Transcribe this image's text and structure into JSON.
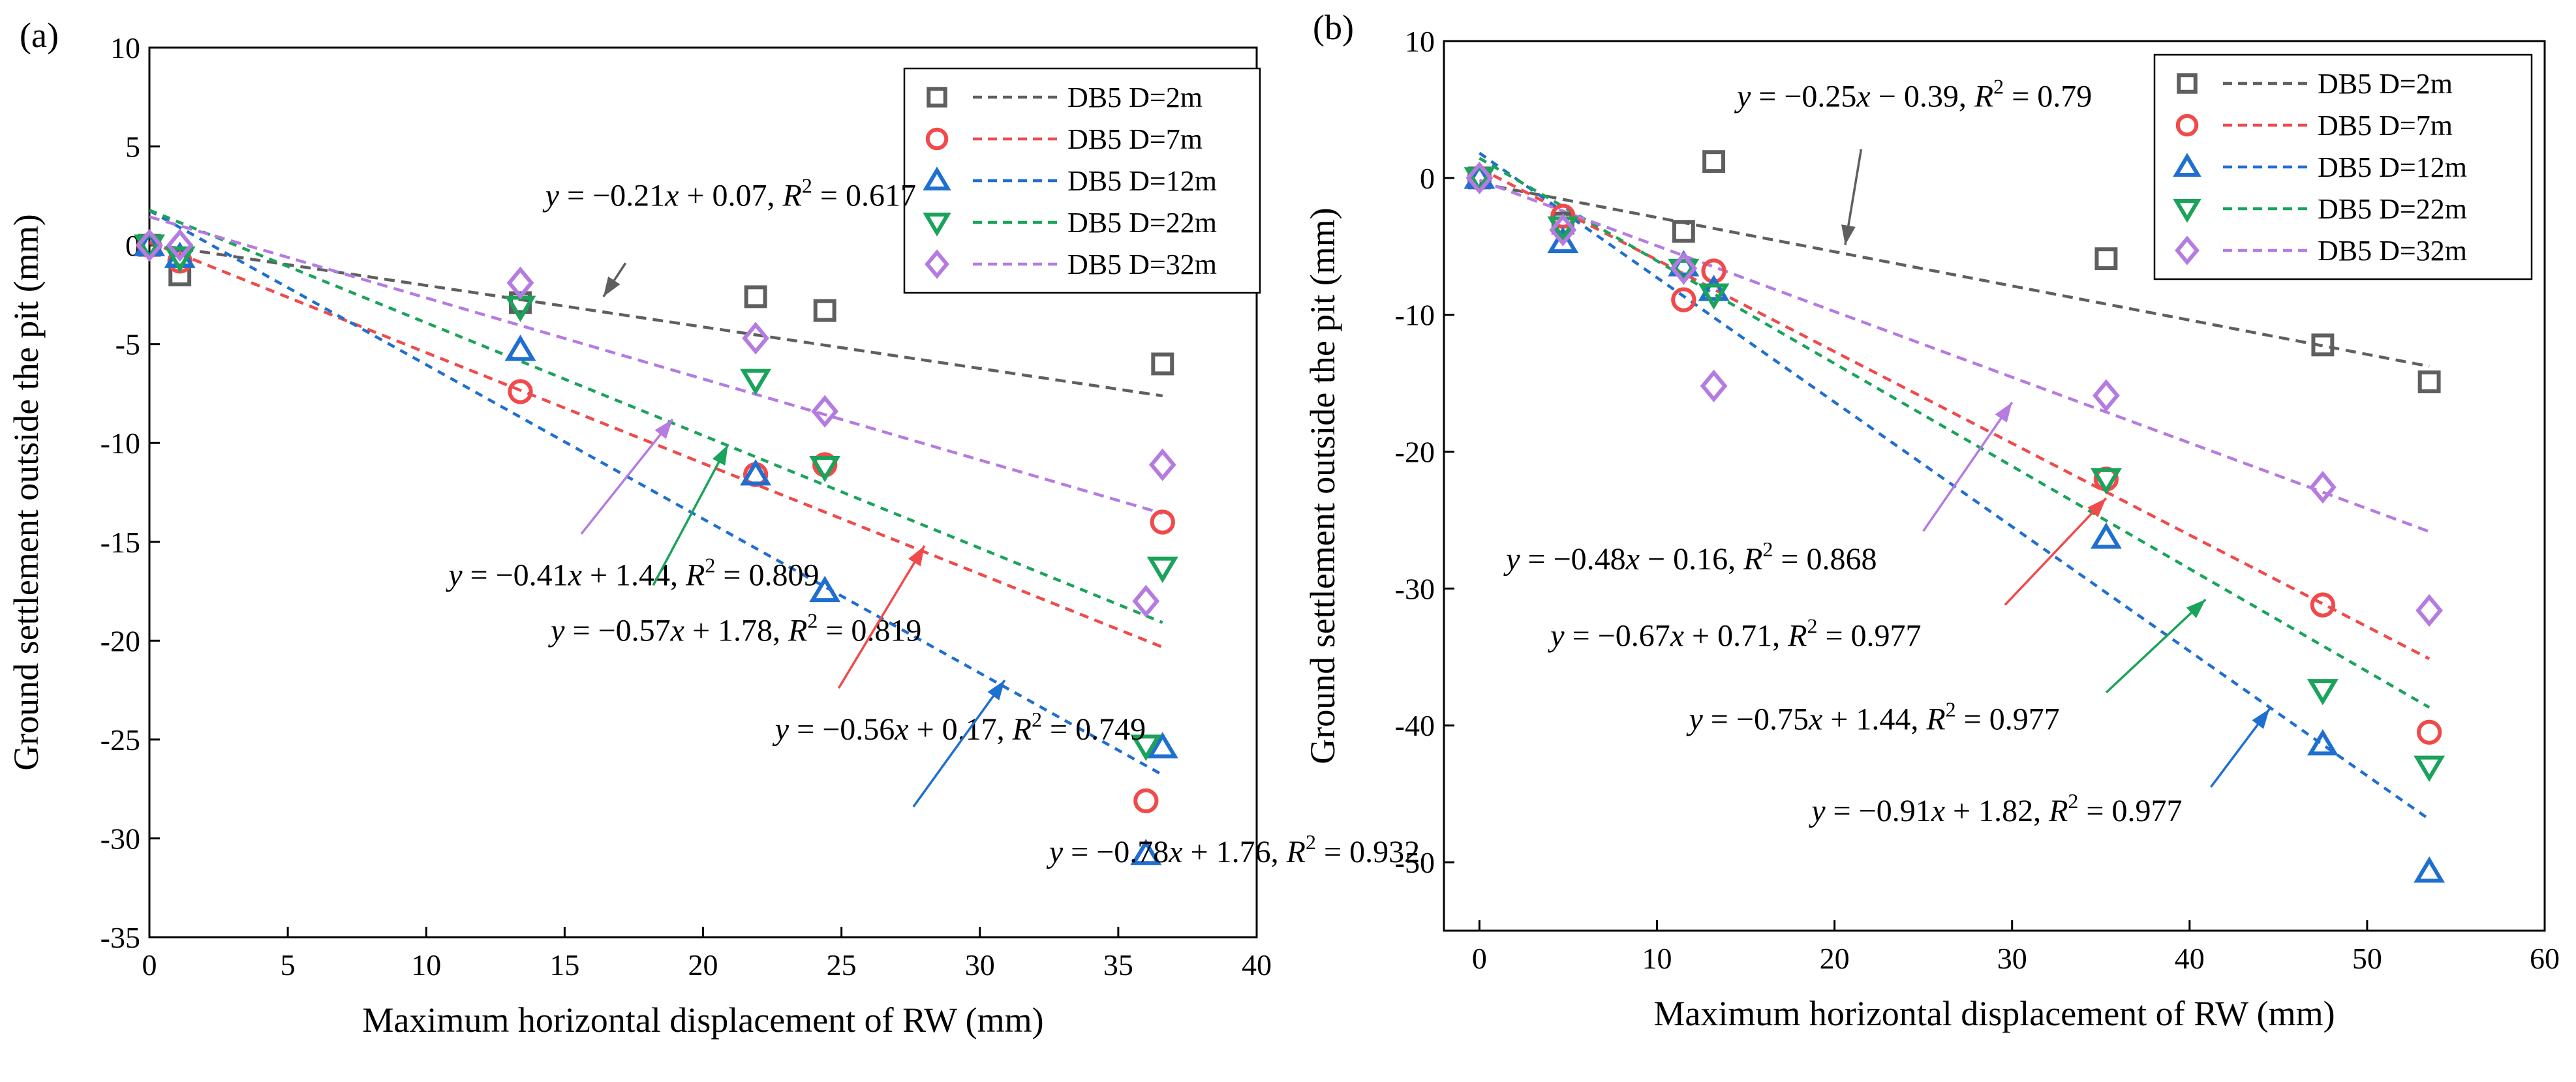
{
  "chart_data": [
    {
      "type": "scatter",
      "panel_label": "(a)",
      "xlabel": "Maximum horizontal displacement of RW (mm)",
      "ylabel": "Ground settlement outside the pit (mm)",
      "xlim": [
        0,
        40
      ],
      "ylim": [
        -35,
        10
      ],
      "xticks": [
        0,
        5,
        10,
        15,
        20,
        25,
        30,
        35,
        40
      ],
      "yticks": [
        10,
        5,
        0,
        -5,
        -10,
        -15,
        -20,
        -25,
        -30,
        -35
      ],
      "legend_position": "top-right",
      "series": [
        {
          "name": "DB5 D=2m",
          "marker": "square",
          "color": "#5f5f5f",
          "x": [
            0,
            1.1,
            13.4,
            21.9,
            24.4,
            36.6
          ],
          "y": [
            0,
            -1.5,
            -2.9,
            -2.6,
            -3.3,
            -6.0
          ],
          "fit": {
            "slope": -0.21,
            "intercept": 0.07,
            "x_range": [
              0,
              36.6
            ]
          }
        },
        {
          "name": "DB5 D=7m",
          "marker": "circle",
          "color": "#f04a4a",
          "x": [
            0,
            1.1,
            13.4,
            21.9,
            24.4,
            36.0,
            36.6
          ],
          "y": [
            0,
            -0.8,
            -7.4,
            -11.6,
            -11.1,
            -28.1,
            -14.0
          ],
          "fit": {
            "slope": -0.56,
            "intercept": 0.17,
            "x_range": [
              0,
              36.6
            ]
          }
        },
        {
          "name": "DB5 D=12m",
          "marker": "triangle-up",
          "color": "#1f6fd0",
          "x": [
            0,
            1.1,
            13.4,
            21.9,
            24.4,
            36.0,
            36.6
          ],
          "y": [
            0,
            -0.6,
            -5.3,
            -11.6,
            -17.5,
            -30.8,
            -25.4
          ],
          "fit": {
            "slope": -0.78,
            "intercept": 1.76,
            "x_range": [
              0,
              36.6
            ]
          }
        },
        {
          "name": "DB5 D=22m",
          "marker": "triangle-down",
          "color": "#1aa35a",
          "x": [
            0,
            1.1,
            13.4,
            21.9,
            24.4,
            36.0,
            36.6
          ],
          "y": [
            0,
            -0.6,
            -3.1,
            -6.8,
            -11.2,
            -25.3,
            -16.3
          ],
          "fit": {
            "slope": -0.57,
            "intercept": 1.78,
            "x_range": [
              0,
              36.6
            ]
          }
        },
        {
          "name": "DB5 D=32m",
          "marker": "diamond",
          "color": "#b57be0",
          "x": [
            0,
            1.1,
            13.4,
            21.9,
            24.4,
            36.0,
            36.6
          ],
          "y": [
            0,
            0,
            -1.9,
            -4.7,
            -8.4,
            -18.0,
            -11.1
          ],
          "fit": {
            "slope": -0.41,
            "intercept": 1.44,
            "x_range": [
              0,
              36.6
            ]
          }
        }
      ],
      "annotations": [
        {
          "series": "DB5 D=2m",
          "slope": "-0.21",
          "sign": "+",
          "intercept": "0.07",
          "r2": "0.617",
          "text_at": [
            14.3,
            2.0
          ],
          "arrow_from": [
            17.2,
            -0.9
          ],
          "arrow_to": [
            16.4,
            -2.6
          ]
        },
        {
          "series": "DB5 D=32m",
          "slope": "-0.41",
          "sign": "+",
          "intercept": "1.44",
          "r2": "0.809",
          "text_at": [
            10.8,
            -17.2
          ],
          "arrow_from": [
            15.6,
            -14.6
          ],
          "arrow_to": [
            18.9,
            -8.8
          ]
        },
        {
          "series": "DB5 D=22m",
          "slope": "-0.57",
          "sign": "+",
          "intercept": "1.78",
          "r2": "0.819",
          "text_at": [
            14.5,
            -20.0
          ],
          "arrow_from": [
            18.2,
            -17.2
          ],
          "arrow_to": [
            20.9,
            -10.1
          ]
        },
        {
          "series": "DB5 D=7m",
          "slope": "-0.56",
          "sign": "+",
          "intercept": "0.17",
          "r2": "0.749",
          "text_at": [
            22.6,
            -25.0
          ],
          "arrow_from": [
            24.9,
            -22.4
          ],
          "arrow_to": [
            28.0,
            -15.2
          ]
        },
        {
          "series": "DB5 D=12m",
          "slope": "-0.78",
          "sign": "+",
          "intercept": "1.76",
          "r2": "0.932",
          "text_at": [
            32.5,
            -31.2
          ],
          "arrow_from": [
            27.6,
            -28.4
          ],
          "arrow_to": [
            30.9,
            -22.0
          ]
        }
      ]
    },
    {
      "type": "scatter",
      "panel_label": "(b)",
      "xlabel": "Maximum horizontal displacement of RW (mm)",
      "ylabel": "Ground settlement outside the pit (mm)",
      "xlim": [
        -2,
        60
      ],
      "ylim": [
        -55,
        10
      ],
      "xticks": [
        0,
        10,
        20,
        30,
        40,
        50,
        60
      ],
      "yticks": [
        10,
        0,
        -10,
        -20,
        -30,
        -40,
        -50
      ],
      "legend_position": "top-right",
      "series": [
        {
          "name": "DB5 D=2m",
          "marker": "square",
          "color": "#5f5f5f",
          "x": [
            0,
            4.7,
            11.5,
            13.2,
            35.3,
            47.5,
            53.5
          ],
          "y": [
            0,
            -3.3,
            -3.9,
            1.2,
            -5.9,
            -12.2,
            -14.9
          ],
          "fit": {
            "slope": -0.25,
            "intercept": -0.39,
            "x_range": [
              0,
              53.5
            ]
          }
        },
        {
          "name": "DB5 D=7m",
          "marker": "circle",
          "color": "#f04a4a",
          "x": [
            0,
            4.7,
            11.5,
            13.2,
            35.3,
            47.5,
            53.5
          ],
          "y": [
            0,
            -2.8,
            -8.9,
            -6.8,
            -22.0,
            -31.2,
            -40.5
          ],
          "fit": {
            "slope": -0.67,
            "intercept": 0.71,
            "x_range": [
              0,
              53.5
            ]
          }
        },
        {
          "name": "DB5 D=12m",
          "marker": "triangle-up",
          "color": "#1f6fd0",
          "x": [
            0,
            4.7,
            11.5,
            13.2,
            35.3,
            47.5,
            53.5
          ],
          "y": [
            0,
            -4.7,
            -6.4,
            -8.2,
            -26.3,
            -41.4,
            -50.7
          ],
          "fit": {
            "slope": -0.91,
            "intercept": 1.82,
            "x_range": [
              0,
              53.5
            ]
          }
        },
        {
          "name": "DB5 D=22m",
          "marker": "triangle-down",
          "color": "#1aa35a",
          "x": [
            0,
            4.7,
            11.5,
            13.2,
            35.3,
            47.5,
            53.5
          ],
          "y": [
            0,
            -3.6,
            -6.7,
            -8.5,
            -22.0,
            -37.4,
            -43.0
          ],
          "fit": {
            "slope": -0.75,
            "intercept": 1.44,
            "x_range": [
              0,
              53.5
            ]
          }
        },
        {
          "name": "DB5 D=32m",
          "marker": "diamond",
          "color": "#b57be0",
          "x": [
            0,
            4.7,
            11.5,
            13.2,
            35.3,
            47.5,
            53.5
          ],
          "y": [
            0,
            -3.8,
            -6.6,
            -15.2,
            -15.9,
            -22.6,
            -31.6
          ],
          "fit": {
            "slope": -0.48,
            "intercept": -0.16,
            "x_range": [
              0,
              53.5
            ]
          }
        }
      ],
      "annotations": [
        {
          "series": "DB5 D=2m",
          "slope": "-0.25",
          "sign": "-",
          "intercept": "0.39",
          "r2": "0.79",
          "text_at": [
            14.5,
            5.2
          ],
          "arrow_from": [
            21.5,
            2.1
          ],
          "arrow_to": [
            20.6,
            -4.9
          ]
        },
        {
          "series": "DB5 D=32m",
          "slope": "-0.48",
          "sign": "-",
          "intercept": "0.16",
          "r2": "0.868",
          "text_at": [
            1.5,
            -28.6
          ],
          "arrow_from": [
            25.0,
            -25.8
          ],
          "arrow_to": [
            30.0,
            -16.4
          ]
        },
        {
          "series": "DB5 D=7m",
          "slope": "-0.67",
          "sign": "+",
          "intercept": "0.71",
          "r2": "0.977",
          "text_at": [
            4.0,
            -34.2
          ],
          "arrow_from": [
            29.6,
            -31.2
          ],
          "arrow_to": [
            35.3,
            -23.4
          ]
        },
        {
          "series": "DB5 D=22m",
          "slope": "-0.75",
          "sign": "+",
          "intercept": "1.44",
          "r2": "0.977",
          "text_at": [
            11.8,
            -40.3
          ],
          "arrow_from": [
            35.3,
            -37.6
          ],
          "arrow_to": [
            40.9,
            -30.8
          ]
        },
        {
          "series": "DB5 D=12m",
          "slope": "-0.91",
          "sign": "+",
          "intercept": "1.82",
          "r2": "0.977",
          "text_at": [
            18.7,
            -47.0
          ],
          "arrow_from": [
            41.2,
            -44.5
          ],
          "arrow_to": [
            44.5,
            -38.8
          ]
        }
      ]
    }
  ]
}
